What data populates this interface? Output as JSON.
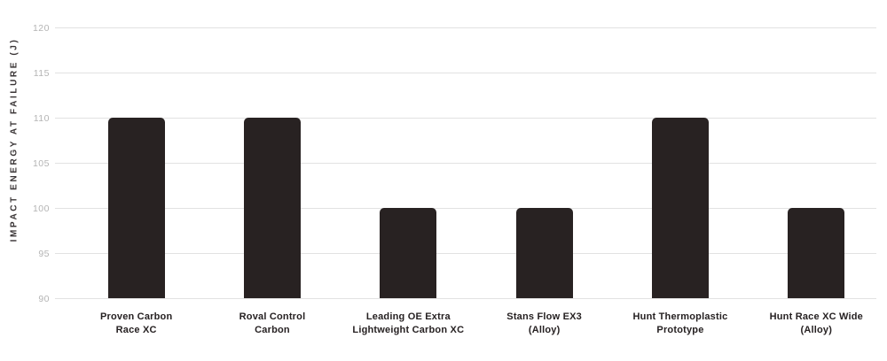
{
  "chart_data": {
    "type": "bar",
    "title": "",
    "xlabel": "",
    "ylabel": "IMPACT ENERGY AT FAILURE (J)",
    "ylim": [
      90,
      120
    ],
    "yticks": [
      120,
      115,
      110,
      105,
      100,
      95,
      90
    ],
    "grid": true,
    "legend": "none",
    "categories": [
      "Proven Carbon Race XC",
      "Roval Control Carbon",
      "Leading OE Extra Lightweight Carbon XC",
      "Stans Flow EX3 (Alloy)",
      "Hunt Thermoplastic Prototype",
      "Hunt Race XC Wide (Alloy)"
    ],
    "category_lines": [
      [
        "Proven Carbon",
        "Race XC"
      ],
      [
        "Roval Control",
        "Carbon"
      ],
      [
        "Leading OE Extra",
        "Lightweight Carbon XC"
      ],
      [
        "Stans Flow EX3",
        "(Alloy)"
      ],
      [
        "Hunt Thermoplastic",
        "Prototype"
      ],
      [
        "Hunt Race XC Wide",
        "(Alloy)"
      ]
    ],
    "values": [
      110,
      110,
      100,
      100,
      110,
      100
    ],
    "colors": {
      "bar": "#282222",
      "gridline": "#e2e2e2",
      "tick_label": "#b4b4b4",
      "category_label": "#262122",
      "axis_title": "#3a3536",
      "background": "#ffffff"
    }
  }
}
